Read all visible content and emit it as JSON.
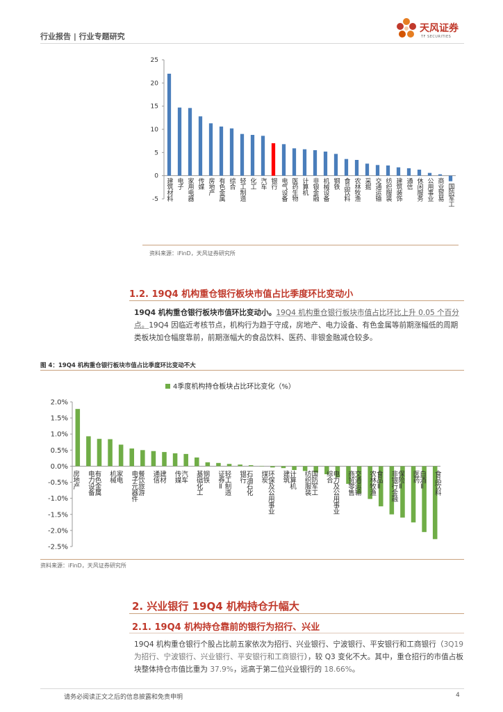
{
  "header": {
    "left_text": "行业报告 | 行业专题研究",
    "logo_cn": "天风证券",
    "logo_en": "TF SECURITIES",
    "brand_color": "#c0392b"
  },
  "figure3": {
    "source": "资料来源：iFinD，天风证券研究所",
    "chart_data": {
      "type": "bar",
      "categories": [
        "建筑材料",
        "电子",
        "家用电器",
        "传媒",
        "房地产",
        "有色金属",
        "综合",
        "轻工制造",
        "化工",
        "汽车",
        "银行",
        "电气设备",
        "医药生物",
        "计算机",
        "非银金融",
        "机械设备",
        "钢铁",
        "食品饮料",
        "农林牧渔",
        "采掘",
        "交通运输",
        "纺织服装",
        "建筑装饰",
        "通信",
        "休闲服务",
        "公用事业",
        "商业贸易",
        "国防军工"
      ],
      "values": [
        22.0,
        14.7,
        14.6,
        12.8,
        11.3,
        10.6,
        10.2,
        9.0,
        8.8,
        8.6,
        7.0,
        6.8,
        5.9,
        5.7,
        5.5,
        5.2,
        4.7,
        3.6,
        3.4,
        2.6,
        2.3,
        2.2,
        1.8,
        1.6,
        1.3,
        0.6,
        0.3,
        -1.2
      ],
      "highlight_category": "银行",
      "highlight_color": "#ff0000",
      "bar_color": "#4a7ebb",
      "ylim": [
        -5,
        25
      ],
      "yticks": [
        -5,
        0,
        5,
        10,
        15,
        20,
        25
      ],
      "title": "",
      "xlabel": "",
      "ylabel": ""
    }
  },
  "section_1_2": {
    "heading": "1.2. 19Q4 机构重仓银行板块市值占比季度环比变动小",
    "para_bold": "19Q4 机构重仓银行板块市值环比变动小。",
    "para_sub": "19Q4 机构重仓银行板块市值占比环比上升 0.05 个百分点。",
    "para_rest": "19Q4 因临近考核节点，机构行为趋于守成，房地产、电力设备、有色金属等前期涨幅低的周期类板块加仓幅度靠前，前期涨幅大的食品饮料、医药、非银金融减仓较多。"
  },
  "figure4": {
    "title": "图 4：19Q4 机构重仓银行板块市值占比季度环比变动不大",
    "source": "资料来源：iFinD，天风证券研究所",
    "chart_data": {
      "type": "bar",
      "legend": "4季度机构持仓板块占比环比变化（%）",
      "legend_position": "top",
      "categories": [
        "房地产",
        "电力设备",
        "有色金属",
        "机械",
        "家电",
        "电子元器件",
        "餐饮旅游",
        "通信",
        "建材",
        "传媒",
        "汽车",
        "基础化工",
        "钢铁",
        "证券Ⅱ",
        "轻工制造",
        "银行",
        "石油石化",
        "煤炭",
        "环保及公用事业",
        "建筑",
        "计算机",
        "纺织服装",
        "国防军工",
        "综合",
        "电力及公用事业",
        "商贸零售",
        "交通运输",
        "农林牧渔",
        "食品Ⅱ",
        "非银行金融",
        "保险Ⅱ",
        "医药",
        "白酒Ⅱ",
        "食品饮料"
      ],
      "values": [
        1.78,
        0.93,
        0.85,
        0.84,
        0.67,
        0.55,
        0.5,
        0.47,
        0.44,
        0.4,
        0.38,
        0.27,
        0.12,
        0.1,
        0.07,
        0.05,
        0.03,
        0.01,
        -0.04,
        -0.06,
        -0.12,
        -0.15,
        -0.2,
        -0.25,
        -0.35,
        -0.55,
        -0.85,
        -1.02,
        -1.25,
        -1.5,
        -1.6,
        -1.75,
        -2.05,
        -2.27
      ],
      "bar_color": "#70ad47",
      "ylim": [
        -2.5,
        2.0
      ],
      "yticks": [
        "2.0%",
        "1.5%",
        "1.0%",
        "0.5%",
        "0.0%",
        "-0.5%",
        "-1.0%",
        "-1.5%",
        "-2.0%",
        "-2.5%"
      ],
      "ytick_values": [
        2.0,
        1.5,
        1.0,
        0.5,
        0.0,
        -0.5,
        -1.0,
        -1.5,
        -2.0,
        -2.5
      ],
      "xlabel": "",
      "ylabel": ""
    }
  },
  "section_2": {
    "heading": "2. 兴业银行 19Q4 机构持仓升幅大",
    "subheading": "2.1. 19Q4 机构持仓靠前的银行为招行、兴业",
    "para_a": "19Q4 机构重仓银行个股占比前五家依次为招行、兴业银行、宁波银行、平安银行和工商银行（",
    "para_b": "3Q19 为招行、宁波银行、兴业银行、平安银行和工商银行",
    "para_c": "），较 Q3 变化不大。其中，重仓招行的市值占板块整体持仓市值比重为 ",
    "para_d": "37.9%",
    "para_e": "，远高于第二位兴业银行的 ",
    "para_f": "18.66%",
    "para_g": "。"
  },
  "footer": {
    "disclaimer": "请务必阅读正文之后的信息披露和免责申明",
    "page_number": "4"
  }
}
